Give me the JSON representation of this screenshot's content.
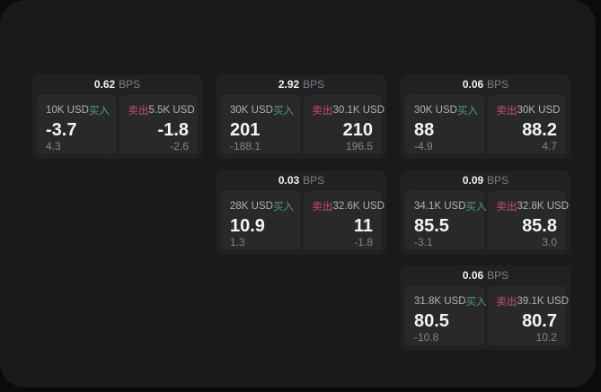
{
  "labels": {
    "bps": "BPS",
    "buy": "买入",
    "sell": "卖出"
  },
  "colors": {
    "buy_accent": "#4fa06d",
    "sell_accent": "#c4506a",
    "window_bg": "#1a1a1c",
    "card_bg": "#212124",
    "panel_bg": "#29292c"
  },
  "cards": [
    {
      "bps": "0.62",
      "col": 0,
      "row": 0,
      "buy": {
        "amount": "10K USD",
        "price": "-3.7",
        "delta": "4.3"
      },
      "sell": {
        "amount": "5.5K USD",
        "price": "-1.8",
        "delta": "-2.6"
      }
    },
    {
      "bps": "2.92",
      "col": 1,
      "row": 0,
      "buy": {
        "amount": "30K USD",
        "price": "201",
        "delta": "-188.1"
      },
      "sell": {
        "amount": "30.1K USD",
        "price": "210",
        "delta": "196.5"
      }
    },
    {
      "bps": "0.06",
      "col": 2,
      "row": 0,
      "buy": {
        "amount": "30K USD",
        "price": "88",
        "delta": "-4.9"
      },
      "sell": {
        "amount": "30K USD",
        "price": "88.2",
        "delta": "4.7"
      }
    },
    {
      "bps": "0.03",
      "col": 1,
      "row": 1,
      "buy": {
        "amount": "28K USD",
        "price": "10.9",
        "delta": "1.3"
      },
      "sell": {
        "amount": "32.6K USD",
        "price": "11",
        "delta": "-1.8"
      }
    },
    {
      "bps": "0.09",
      "col": 2,
      "row": 1,
      "buy": {
        "amount": "34.1K USD",
        "price": "85.5",
        "delta": "-3.1"
      },
      "sell": {
        "amount": "32.8K USD",
        "price": "85.8",
        "delta": "3.0"
      }
    },
    {
      "bps": "0.06",
      "col": 2,
      "row": 2,
      "buy": {
        "amount": "31.8K USD",
        "price": "80.5",
        "delta": "-10.8"
      },
      "sell": {
        "amount": "39.1K USD",
        "price": "80.7",
        "delta": "10.2"
      }
    }
  ]
}
